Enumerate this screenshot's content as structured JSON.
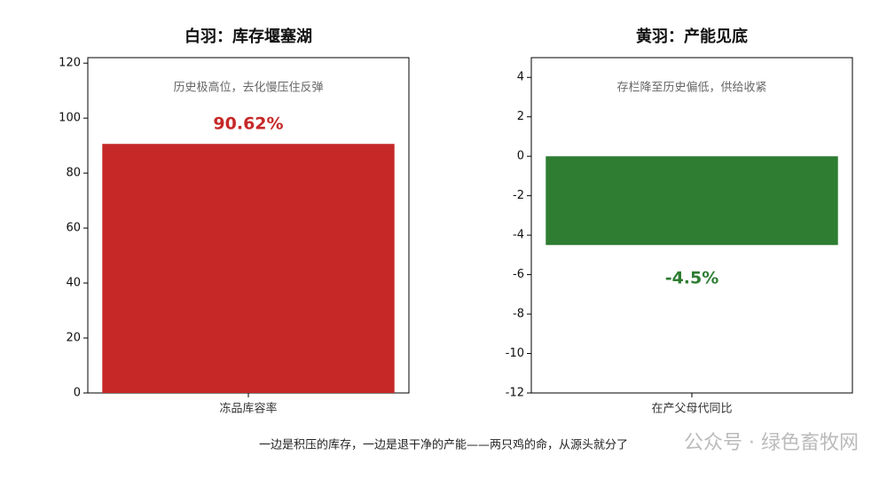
{
  "chart_data": [
    {
      "type": "bar",
      "title": "白羽：库存堰塞湖",
      "annotation": "历史极高位，去化慢压住反弹",
      "categories": [
        "冻品库容率"
      ],
      "values": [
        90.62
      ],
      "value_labels": [
        "90.62%"
      ],
      "color": "#c62828",
      "ylim": [
        0,
        122
      ],
      "yticks": [
        0,
        20,
        40,
        60,
        80,
        100,
        120
      ]
    },
    {
      "type": "bar",
      "title": "黄羽：产能见底",
      "annotation": "存栏降至历史偏低，供给收紧",
      "categories": [
        "在产父母代同比"
      ],
      "values": [
        -4.5
      ],
      "value_labels": [
        "-4.5%"
      ],
      "color": "#2e7d32",
      "ylim": [
        -12,
        5
      ],
      "yticks": [
        -12,
        -10,
        -8,
        -6,
        -4,
        -2,
        0,
        2,
        4
      ]
    }
  ],
  "caption": "一边是积压的库存，一边是退干净的产能——两只鸡的命，从源头就分了",
  "watermark": "公众号 · 绿色畜牧网"
}
